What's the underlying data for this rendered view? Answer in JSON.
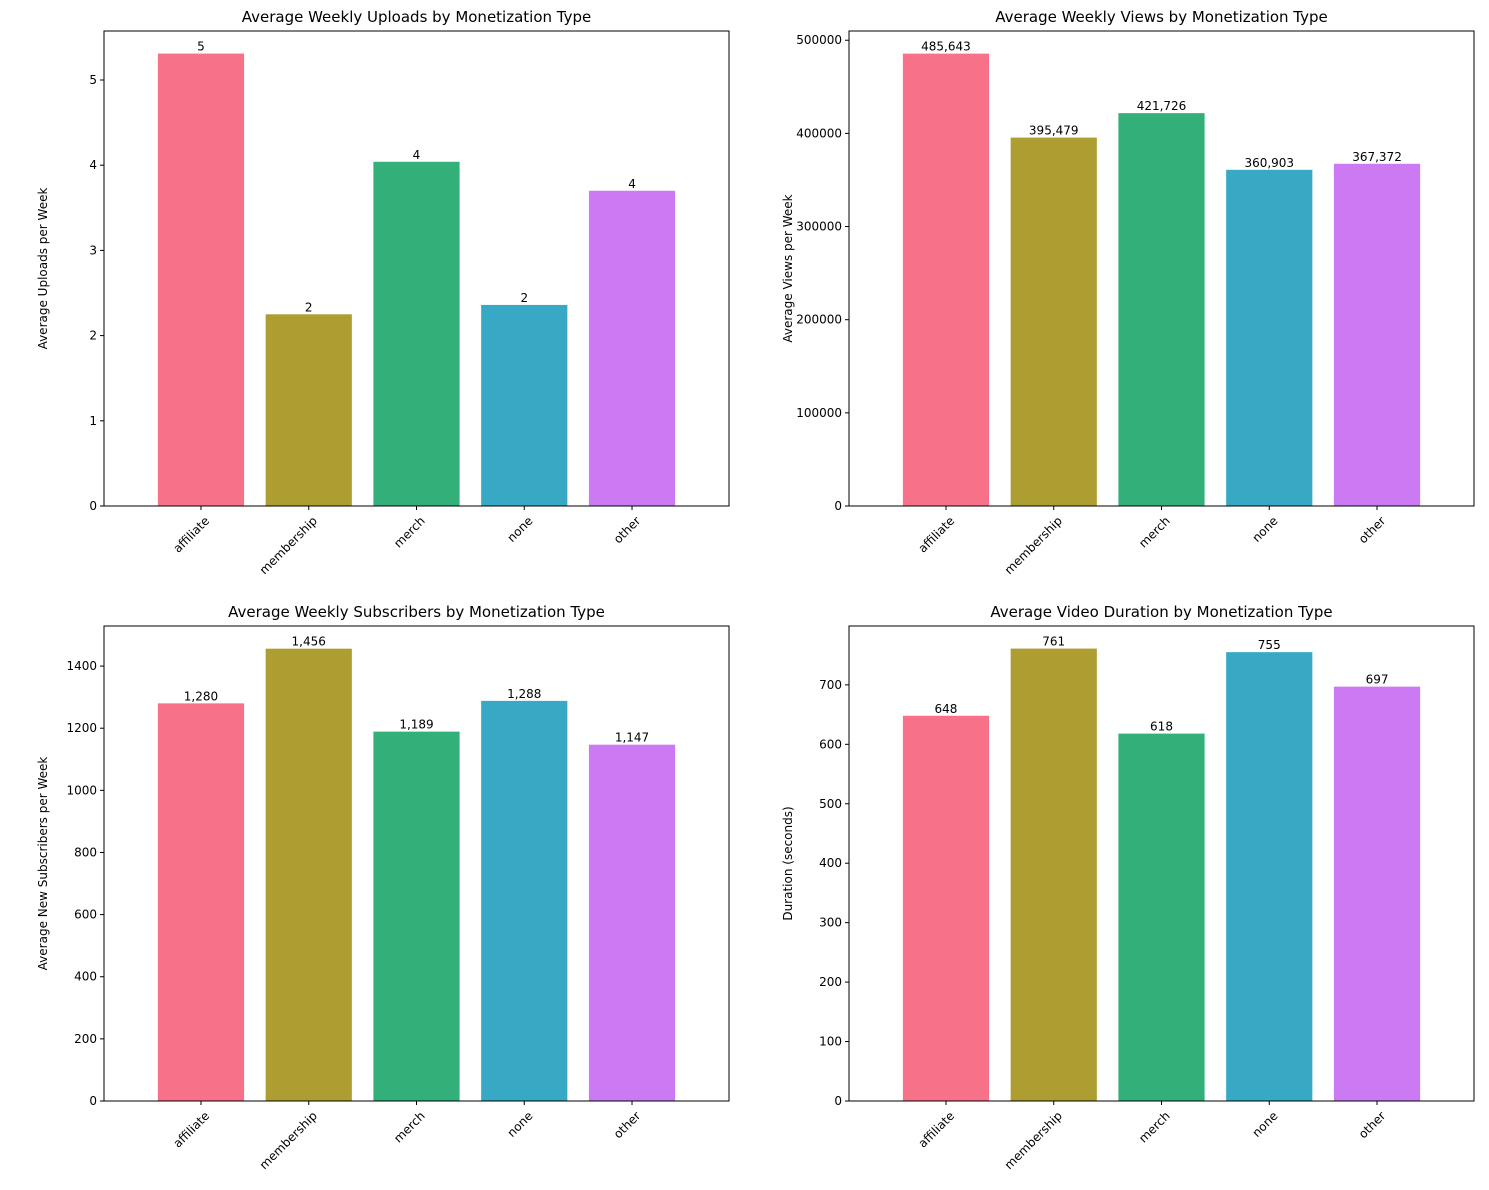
{
  "chart_data": [
    {
      "type": "bar",
      "title": "Average Weekly Uploads by Monetization Type",
      "xlabel": "",
      "ylabel": "Average Uploads per Week",
      "categories": [
        "affiliate",
        "membership",
        "merch",
        "none",
        "other"
      ],
      "values": [
        5.31,
        2.25,
        4.04,
        2.36,
        3.7
      ],
      "data_labels": [
        "5",
        "2",
        "4",
        "2",
        "4"
      ],
      "ylim": [
        0,
        5.575
      ],
      "yticks": [
        0,
        1,
        2,
        3,
        4,
        5
      ],
      "ytick_labels": [
        "0",
        "1",
        "2",
        "3",
        "4",
        "5"
      ],
      "colors": [
        "#f77189",
        "#ae9d31",
        "#33b07a",
        "#38a9c5",
        "#cc7af4"
      ],
      "grid": false
    },
    {
      "type": "bar",
      "title": "Average Weekly Views by Monetization Type",
      "xlabel": "",
      "ylabel": "Average Views per Week",
      "categories": [
        "affiliate",
        "membership",
        "merch",
        "none",
        "other"
      ],
      "values": [
        485643,
        395479,
        421726,
        360903,
        367372
      ],
      "data_labels": [
        "485,643",
        "395,479",
        "421,726",
        "360,903",
        "367,372"
      ],
      "ylim": [
        0,
        509925
      ],
      "yticks": [
        0,
        100000,
        200000,
        300000,
        400000,
        500000
      ],
      "ytick_labels": [
        "0",
        "100000",
        "200000",
        "300000",
        "400000",
        "500000"
      ],
      "colors": [
        "#f77189",
        "#ae9d31",
        "#33b07a",
        "#38a9c5",
        "#cc7af4"
      ],
      "grid": false
    },
    {
      "type": "bar",
      "title": "Average Weekly Subscribers by Monetization Type",
      "xlabel": "",
      "ylabel": "Average New Subscribers per Week",
      "categories": [
        "affiliate",
        "membership",
        "merch",
        "none",
        "other"
      ],
      "values": [
        1280,
        1456,
        1189,
        1288,
        1147
      ],
      "data_labels": [
        "1,280",
        "1,456",
        "1,189",
        "1,288",
        "1,147"
      ],
      "ylim": [
        0,
        1529
      ],
      "yticks": [
        0,
        200,
        400,
        600,
        800,
        1000,
        1200,
        1400
      ],
      "ytick_labels": [
        "0",
        "200",
        "400",
        "600",
        "800",
        "1000",
        "1200",
        "1400"
      ],
      "colors": [
        "#f77189",
        "#ae9d31",
        "#33b07a",
        "#38a9c5",
        "#cc7af4"
      ],
      "grid": false
    },
    {
      "type": "bar",
      "title": "Average Video Duration by Monetization Type",
      "xlabel": "",
      "ylabel": "Duration (seconds)",
      "categories": [
        "affiliate",
        "membership",
        "merch",
        "none",
        "other"
      ],
      "values": [
        648,
        761,
        618,
        755,
        697
      ],
      "data_labels": [
        "648",
        "761",
        "618",
        "755",
        "697"
      ],
      "ylim": [
        0,
        799
      ],
      "yticks": [
        0,
        100,
        200,
        300,
        400,
        500,
        600,
        700
      ],
      "ytick_labels": [
        "0",
        "100",
        "200",
        "300",
        "400",
        "500",
        "600",
        "700"
      ],
      "colors": [
        "#f77189",
        "#ae9d31",
        "#33b07a",
        "#38a9c5",
        "#cc7af4"
      ],
      "grid": false
    }
  ]
}
